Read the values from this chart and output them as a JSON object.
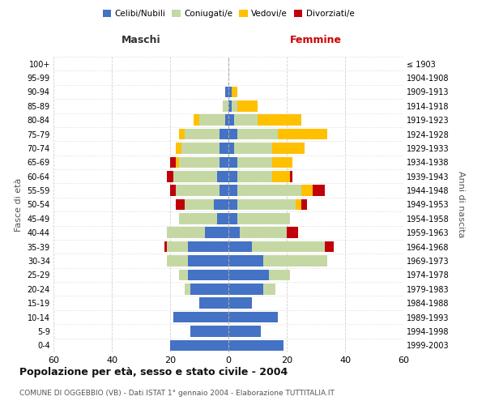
{
  "age_groups": [
    "0-4",
    "5-9",
    "10-14",
    "15-19",
    "20-24",
    "25-29",
    "30-34",
    "35-39",
    "40-44",
    "45-49",
    "50-54",
    "55-59",
    "60-64",
    "65-69",
    "70-74",
    "75-79",
    "80-84",
    "85-89",
    "90-94",
    "95-99",
    "100+"
  ],
  "birth_years": [
    "1999-2003",
    "1994-1998",
    "1989-1993",
    "1984-1988",
    "1979-1983",
    "1974-1978",
    "1969-1973",
    "1964-1968",
    "1959-1963",
    "1954-1958",
    "1949-1953",
    "1944-1948",
    "1939-1943",
    "1934-1938",
    "1929-1933",
    "1924-1928",
    "1919-1923",
    "1914-1918",
    "1909-1913",
    "1904-1908",
    "≤ 1903"
  ],
  "male": {
    "celibe": [
      20,
      13,
      19,
      10,
      13,
      14,
      14,
      14,
      8,
      4,
      5,
      3,
      4,
      3,
      3,
      3,
      1,
      0,
      1,
      0,
      0
    ],
    "coniugato": [
      0,
      0,
      0,
      0,
      2,
      3,
      7,
      7,
      13,
      13,
      10,
      15,
      15,
      14,
      13,
      12,
      9,
      2,
      0,
      0,
      0
    ],
    "vedovo": [
      0,
      0,
      0,
      0,
      0,
      0,
      0,
      0,
      0,
      0,
      0,
      0,
      0,
      1,
      2,
      2,
      2,
      0,
      0,
      0,
      0
    ],
    "divorziato": [
      0,
      0,
      0,
      0,
      0,
      0,
      0,
      1,
      0,
      0,
      3,
      2,
      2,
      2,
      0,
      0,
      0,
      0,
      0,
      0,
      0
    ]
  },
  "female": {
    "nubile": [
      19,
      11,
      17,
      8,
      12,
      14,
      12,
      8,
      4,
      3,
      3,
      3,
      3,
      3,
      2,
      3,
      2,
      1,
      1,
      0,
      0
    ],
    "coniugata": [
      0,
      0,
      0,
      0,
      4,
      7,
      22,
      25,
      16,
      18,
      20,
      22,
      12,
      12,
      13,
      14,
      8,
      2,
      0,
      0,
      0
    ],
    "vedova": [
      0,
      0,
      0,
      0,
      0,
      0,
      0,
      0,
      0,
      0,
      2,
      4,
      6,
      7,
      11,
      17,
      15,
      7,
      2,
      0,
      0
    ],
    "divorziata": [
      0,
      0,
      0,
      0,
      0,
      0,
      0,
      3,
      4,
      0,
      2,
      4,
      1,
      0,
      0,
      0,
      0,
      0,
      0,
      0,
      0
    ]
  },
  "colors": {
    "celibe": "#4472c4",
    "coniugato": "#c5d8a4",
    "vedovo": "#ffc000",
    "divorziato": "#c0000b"
  },
  "title": "Popolazione per età, sesso e stato civile - 2004",
  "subtitle": "COMUNE DI OGGEBBIO (VB) - Dati ISTAT 1° gennaio 2004 - Elaborazione TUTTITALIA.IT",
  "xlabel_left": "Maschi",
  "xlabel_right": "Femmine",
  "ylabel_left": "Fasce di età",
  "ylabel_right": "Anni di nascita",
  "xlim": 60,
  "legend_labels": [
    "Celibi/Nubili",
    "Coniugati/e",
    "Vedovi/e",
    "Divorziati/e"
  ],
  "bg_color": "#ffffff",
  "grid_color": "#cccccc"
}
